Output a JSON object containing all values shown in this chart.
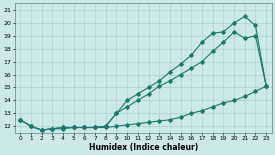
{
  "xlabel": "Humidex (Indice chaleur)",
  "xlim": [
    -0.5,
    23.5
  ],
  "ylim": [
    11.5,
    21.5
  ],
  "y_ticks": [
    12,
    13,
    14,
    15,
    16,
    17,
    18,
    19,
    20,
    21
  ],
  "x_ticks": [
    0,
    1,
    2,
    3,
    4,
    5,
    6,
    7,
    8,
    9,
    10,
    11,
    12,
    13,
    14,
    15,
    16,
    17,
    18,
    19,
    20,
    21,
    22,
    23
  ],
  "bg_color": "#cce8e8",
  "grid_color": "#aad0d0",
  "line_color": "#1a7a6e",
  "series_min_x": [
    0,
    1,
    2,
    3,
    4,
    5,
    6,
    7,
    8,
    9,
    10,
    11,
    12,
    13,
    14,
    15,
    16,
    17,
    18,
    19,
    20,
    21,
    22,
    23
  ],
  "series_min_y": [
    12.5,
    12.0,
    11.7,
    11.8,
    11.8,
    11.9,
    11.9,
    11.9,
    11.9,
    12.0,
    12.1,
    12.2,
    12.3,
    12.4,
    12.5,
    12.7,
    13.0,
    13.2,
    13.5,
    13.8,
    14.0,
    14.3,
    14.7,
    15.1
  ],
  "series_mean_x": [
    0,
    1,
    2,
    3,
    4,
    5,
    6,
    7,
    8,
    9,
    10,
    11,
    12,
    13,
    14,
    15,
    16,
    17,
    18,
    19,
    20,
    21,
    22,
    23
  ],
  "series_mean_y": [
    12.5,
    12.0,
    11.7,
    11.8,
    11.9,
    11.9,
    11.9,
    11.9,
    12.0,
    13.0,
    13.5,
    14.0,
    14.5,
    15.1,
    15.5,
    16.0,
    16.5,
    17.0,
    17.8,
    18.5,
    19.3,
    18.8,
    19.0,
    15.1
  ],
  "series_max_x": [
    0,
    1,
    2,
    3,
    4,
    5,
    6,
    7,
    8,
    9,
    10,
    11,
    12,
    13,
    14,
    15,
    16,
    17,
    18,
    19,
    20,
    21,
    22,
    23
  ],
  "series_max_y": [
    12.5,
    12.0,
    11.7,
    11.8,
    11.9,
    11.9,
    11.9,
    11.9,
    12.0,
    13.0,
    14.0,
    14.5,
    15.0,
    15.5,
    16.2,
    16.8,
    17.5,
    18.5,
    19.2,
    19.3,
    20.0,
    20.5,
    19.8,
    15.1
  ]
}
